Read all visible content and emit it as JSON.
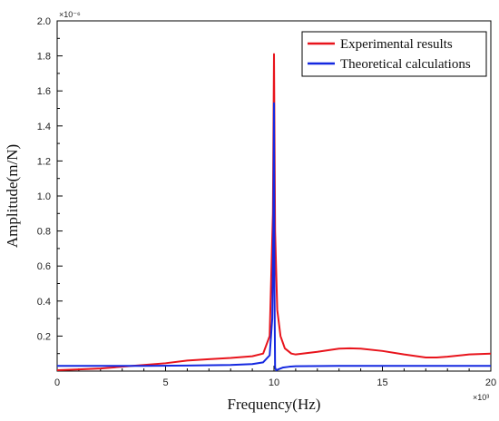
{
  "chart_data": {
    "type": "line",
    "xlabel": "Frequency(Hz)",
    "ylabel": "Amplitude(m/N)",
    "x_multiplier": "×10³",
    "y_multiplier": "×10⁻⁶",
    "xlim": [
      0,
      20
    ],
    "ylim": [
      0,
      2.0
    ],
    "x_ticks": [
      "0",
      "5",
      "10",
      "15",
      "20"
    ],
    "y_ticks": [
      "0.2",
      "0.4",
      "0.6",
      "0.8",
      "1.0",
      "1.2",
      "1.4",
      "1.6",
      "1.8",
      "2.0"
    ],
    "grid": false,
    "legend_position": "top-right",
    "series": [
      {
        "name": "Experimental results",
        "color": "#e8141c",
        "x": [
          0,
          1,
          2,
          3,
          4,
          5,
          6,
          7,
          8,
          9,
          9.5,
          9.8,
          9.95,
          10.0,
          10.05,
          10.15,
          10.3,
          10.5,
          10.8,
          11,
          12,
          13,
          13.5,
          14,
          15,
          16,
          17,
          17.5,
          18,
          19,
          20
        ],
        "y": [
          0.005,
          0.01,
          0.015,
          0.025,
          0.035,
          0.045,
          0.06,
          0.068,
          0.075,
          0.085,
          0.1,
          0.2,
          0.9,
          1.81,
          0.8,
          0.35,
          0.2,
          0.13,
          0.1,
          0.095,
          0.11,
          0.128,
          0.13,
          0.128,
          0.115,
          0.095,
          0.078,
          0.078,
          0.082,
          0.095,
          0.1
        ]
      },
      {
        "name": "Theoretical calculations",
        "color": "#1428e0",
        "x": [
          0,
          2,
          4,
          6,
          8,
          9,
          9.5,
          9.8,
          9.92,
          9.97,
          10.0,
          10.02,
          10.05,
          10.1,
          10.2,
          10.4,
          10.7,
          11,
          13,
          15,
          17,
          20
        ],
        "y": [
          0.03,
          0.03,
          0.03,
          0.032,
          0.035,
          0.04,
          0.05,
          0.09,
          0.3,
          0.8,
          1.53,
          0.5,
          0.02,
          0.005,
          0.01,
          0.02,
          0.025,
          0.028,
          0.03,
          0.03,
          0.03,
          0.03
        ]
      }
    ]
  }
}
